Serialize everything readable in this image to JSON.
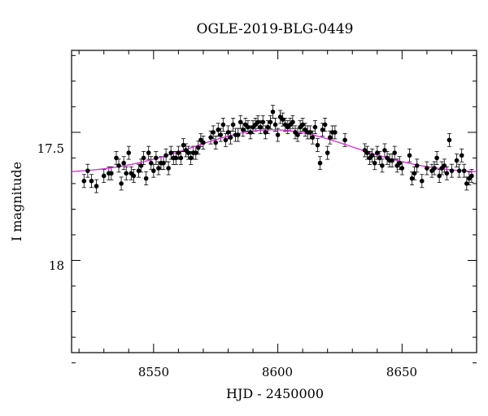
{
  "chart_data": {
    "type": "scatter",
    "title": "OGLE-2019-BLG-0449",
    "xlabel": "HJD - 2450000",
    "ylabel": "I magnitude",
    "xlim": [
      8517,
      8680
    ],
    "ylim": [
      18.36,
      17.18
    ],
    "y_inverted": true,
    "x_ticks": [
      "8550",
      "8600",
      "8650"
    ],
    "y_ticks": [
      "17.5",
      "18"
    ],
    "grid": false,
    "legend": "none",
    "colors": {
      "points": "#000000",
      "model": "#d42ad6"
    },
    "series": [
      {
        "kind": "points_with_errorbars",
        "x": [
          8522,
          8523.5,
          8525,
          8527,
          8530,
          8532,
          8533,
          8535,
          8536,
          8537,
          8538,
          8539,
          8540,
          8541,
          8542,
          8544,
          8545,
          8546,
          8547,
          8548,
          8549,
          8550,
          8551,
          8552,
          8553,
          8554,
          8555,
          8556,
          8557,
          8558,
          8559,
          8560,
          8561,
          8562,
          8563,
          8564,
          8565,
          8566,
          8567,
          8568,
          8569,
          8570,
          8573,
          8574,
          8575,
          8576,
          8577,
          8578,
          8579,
          8580,
          8581,
          8582,
          8583,
          8584,
          8585,
          8586,
          8587,
          8588,
          8589,
          8590,
          8591,
          8592,
          8593,
          8594,
          8595,
          8596,
          8597,
          8598,
          8599,
          8600,
          8601,
          8602,
          8603,
          8604,
          8605,
          8606,
          8607,
          8608,
          8609,
          8610,
          8611,
          8612,
          8613,
          8614,
          8615,
          8616,
          8617,
          8618,
          8619,
          8620,
          8621,
          8622,
          8623,
          8627,
          8635,
          8636,
          8637,
          8638,
          8639,
          8640,
          8641,
          8642,
          8643,
          8644,
          8645,
          8646,
          8647,
          8648,
          8649,
          8650,
          8653,
          8654,
          8655,
          8656,
          8658,
          8660,
          8662,
          8663,
          8664,
          8665,
          8666,
          8667,
          8668,
          8669,
          8670,
          8672,
          8673,
          8674,
          8675,
          8676,
          8677,
          8678
        ],
        "y": [
          17.69,
          17.65,
          17.69,
          17.71,
          17.67,
          17.66,
          17.66,
          17.6,
          17.63,
          17.7,
          17.62,
          17.66,
          17.58,
          17.66,
          17.67,
          17.65,
          17.63,
          17.6,
          17.68,
          17.58,
          17.62,
          17.65,
          17.6,
          17.64,
          17.62,
          17.62,
          17.59,
          17.64,
          17.58,
          17.6,
          17.6,
          17.58,
          17.6,
          17.55,
          17.57,
          17.58,
          17.6,
          17.58,
          17.58,
          17.56,
          17.53,
          17.54,
          17.52,
          17.5,
          17.54,
          17.49,
          17.51,
          17.47,
          17.53,
          17.5,
          17.52,
          17.47,
          17.51,
          17.51,
          17.46,
          17.49,
          17.47,
          17.48,
          17.5,
          17.48,
          17.47,
          17.46,
          17.48,
          17.46,
          17.5,
          17.48,
          17.46,
          17.42,
          17.47,
          17.51,
          17.44,
          17.45,
          17.47,
          17.48,
          17.47,
          17.46,
          17.5,
          17.51,
          17.48,
          17.47,
          17.49,
          17.5,
          17.5,
          17.52,
          17.48,
          17.55,
          17.62,
          17.49,
          17.47,
          17.58,
          17.52,
          17.5,
          17.5,
          17.53,
          17.57,
          17.58,
          17.6,
          17.59,
          17.62,
          17.58,
          17.6,
          17.63,
          17.57,
          17.6,
          17.61,
          17.61,
          17.58,
          17.63,
          17.62,
          17.64,
          17.59,
          17.68,
          17.66,
          17.63,
          17.69,
          17.64,
          17.65,
          17.64,
          17.6,
          17.67,
          17.64,
          17.63,
          17.66,
          17.53,
          17.65,
          17.61,
          17.65,
          17.59,
          17.65,
          17.7,
          17.68,
          17.67
        ]
      },
      {
        "kind": "model_curve",
        "peak_x": 8598,
        "peak_y": 17.49,
        "baseline_y": 17.66,
        "width_days": 32
      }
    ]
  }
}
